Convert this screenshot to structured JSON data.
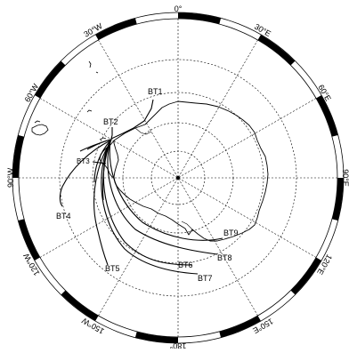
{
  "map": {
    "graticule_labels": [
      {
        "key": "lon_0",
        "text": "0°"
      },
      {
        "key": "lon_30e",
        "text": "30°E"
      },
      {
        "key": "lon_60e",
        "text": "60°E"
      },
      {
        "key": "lon_90e",
        "text": "90°E"
      },
      {
        "key": "lon_120e",
        "text": "120°E"
      },
      {
        "key": "lon_150e",
        "text": "150°E"
      },
      {
        "key": "lon_180",
        "text": "180°"
      },
      {
        "key": "lon_150w",
        "text": "150°W"
      },
      {
        "key": "lon_120w",
        "text": "120°W"
      },
      {
        "key": "lon_90w",
        "text": "90°W"
      },
      {
        "key": "lon_60w",
        "text": "60°W"
      },
      {
        "key": "lon_30w",
        "text": "30°W"
      }
    ],
    "tracks": [
      "BT1",
      "BT2",
      "BT3",
      "BT4",
      "BT5",
      "BT6",
      "BT7",
      "BT8",
      "BT9"
    ],
    "colors": {
      "background": "#ffffff",
      "ink": "#000000",
      "grid": "#000000"
    }
  }
}
